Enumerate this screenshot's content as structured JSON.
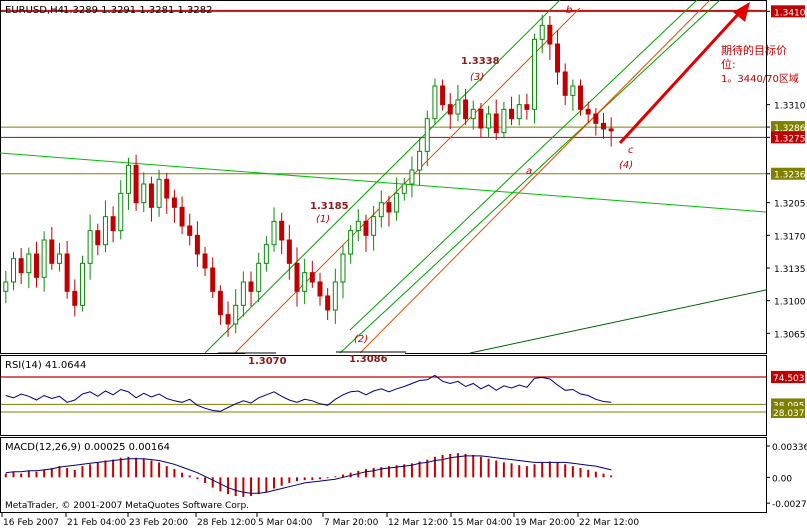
{
  "header": {
    "symbol": "EURUSD,H4",
    "ohlc": "1.3289 1.3291 1.3281 1.3282",
    "rsi_label": "RSI(14) 41.0644",
    "macd_label": "MACD(12,26,9) 0.00025 0.00164",
    "copyright": "MetaTrader, © 2001-2007 MetaQuotes Software Corp."
  },
  "colors": {
    "up_candle": "#0a8a0a",
    "down_candle": "#c00000",
    "rsi_line": "#000080",
    "macd_hist": "#c00000",
    "signal_line": "#000080",
    "channel_outer": "#00a000",
    "channel_inner": "#e05000",
    "target_arrow": "#e00000",
    "hline_red": "#c00000",
    "hline_olive": "#808000"
  },
  "annotations": {
    "wave_b": "b",
    "wave_a": "a",
    "wave_c": "c",
    "wave_4": "(4)",
    "wave_3_price": "1.3338",
    "wave_3": "(3)",
    "wave_1_price": "1.3185",
    "wave_1": "(1)",
    "wave_2": "(2)",
    "low_1": "1.3070",
    "low_2": "1.3086",
    "target_line1": "期待的目标价",
    "target_line2": "位:",
    "target_line3": "1。3440/70区域"
  },
  "chart_data": [
    {
      "type": "candlestick",
      "title": "EURUSD,H4",
      "ylim": [
        1.3045,
        1.342
      ],
      "y_ticks": [
        "1.3410",
        "1.3310",
        "1.3286",
        "1.3275",
        "1.3236",
        "1.3205",
        "1.3170",
        "1.3135",
        "1.3100",
        "1.3065"
      ],
      "highlighted_levels": [
        {
          "value": 1.341,
          "label": "1.3410",
          "color": "#c00000"
        },
        {
          "value": 1.3286,
          "label": "1.3286",
          "color": "#808000"
        },
        {
          "value": 1.3275,
          "label": "1.3275",
          "color": "#c00000"
        },
        {
          "value": 1.3236,
          "label": "1.3236",
          "color": "#808000"
        }
      ],
      "x_labels": [
        "16 Feb 2007",
        "21 Feb 04:00",
        "23 Feb 20:00",
        "28 Feb 12:00",
        "5 Mar 04:00",
        "7 Mar 20:00",
        "12 Mar 12:00",
        "15 Mar 04:00",
        "19 Mar 20:00",
        "22 Mar 12:00"
      ],
      "close_path": [
        1.312,
        1.3145,
        1.313,
        1.315,
        1.3125,
        1.3165,
        1.314,
        1.315,
        1.311,
        1.3095,
        1.314,
        1.3175,
        1.316,
        1.319,
        1.3175,
        1.3215,
        1.3245,
        1.3205,
        1.3225,
        1.32,
        1.323,
        1.321,
        1.32,
        1.318,
        1.317,
        1.315,
        1.3135,
        1.311,
        1.3085,
        1.3075,
        1.3095,
        1.312,
        1.311,
        1.314,
        1.316,
        1.3185,
        1.3165,
        1.314,
        1.311,
        1.313,
        1.312,
        1.3105,
        1.309,
        1.312,
        1.315,
        1.3175,
        1.3185,
        1.317,
        1.319,
        1.3205,
        1.3195,
        1.3215,
        1.3225,
        1.324,
        1.326,
        1.3295,
        1.333,
        1.331,
        1.33,
        1.3315,
        1.3295,
        1.3305,
        1.3285,
        1.33,
        1.328,
        1.3305,
        1.3295,
        1.331,
        1.3305,
        1.338,
        1.3395,
        1.3375,
        1.3345,
        1.332,
        1.333,
        1.3305,
        1.33,
        1.329,
        1.3284,
        1.3282
      ]
    },
    {
      "type": "line",
      "title": "RSI(14) 41.0644",
      "ylim": [
        0,
        100
      ],
      "y_ticks": [
        "74.7664",
        "74.5037",
        "38.0952",
        "28.0374"
      ],
      "levels": [
        74.7664,
        74.5037,
        38.0952,
        28.0374
      ],
      "values": [
        50,
        47,
        52,
        49,
        44,
        50,
        46,
        49,
        41,
        44,
        52,
        55,
        49,
        56,
        51,
        58,
        55,
        47,
        53,
        48,
        52,
        46,
        43,
        41,
        45,
        37,
        33,
        30,
        29,
        34,
        39,
        43,
        40,
        47,
        51,
        55,
        49,
        44,
        41,
        45,
        43,
        39,
        37,
        45,
        51,
        55,
        56,
        51,
        56,
        59,
        55,
        59,
        62,
        66,
        70,
        71,
        77,
        69,
        66,
        69,
        62,
        66,
        59,
        64,
        57,
        63,
        60,
        64,
        61,
        73,
        74,
        72,
        64,
        57,
        58,
        52,
        50,
        45,
        42,
        41
      ]
    },
    {
      "type": "bar",
      "title": "MACD(12,26,9) 0.00025 0.00164",
      "ylim": [
        -0.0035,
        0.004
      ],
      "y_ticks": [
        "0.00336",
        "0.00",
        "-0.00277"
      ],
      "histogram": [
        0.0004,
        0.0006,
        0.0004,
        0.0007,
        0.0006,
        0.0008,
        0.001,
        0.0012,
        0.001,
        0.0008,
        0.0012,
        0.0014,
        0.0016,
        0.0018,
        0.0019,
        0.0021,
        0.0022,
        0.0021,
        0.002,
        0.0018,
        0.0016,
        0.0012,
        0.0009,
        0.0005,
        0.0002,
        -0.0002,
        -0.0006,
        -0.0011,
        -0.0015,
        -0.0018,
        -0.002,
        -0.0021,
        -0.002,
        -0.0018,
        -0.0016,
        -0.0012,
        -0.0009,
        -0.0006,
        -0.0004,
        -0.0003,
        -0.0003,
        -0.0002,
        -0.0001,
        0.0001,
        0.0003,
        0.0005,
        0.0007,
        0.0009,
        0.001,
        0.0011,
        0.0012,
        0.0013,
        0.0014,
        0.0015,
        0.0017,
        0.0019,
        0.0022,
        0.0024,
        0.0025,
        0.0026,
        0.0025,
        0.0024,
        0.0022,
        0.002,
        0.0018,
        0.0016,
        0.0015,
        0.0013,
        0.0012,
        0.0014,
        0.0016,
        0.0017,
        0.0016,
        0.0014,
        0.0012,
        0.001,
        0.0008,
        0.0006,
        0.0004,
        0.0002
      ],
      "signal": [
        0.0005,
        0.0006,
        0.0006,
        0.0007,
        0.0007,
        0.0008,
        0.0009,
        0.0011,
        0.0012,
        0.0013,
        0.0014,
        0.0015,
        0.0016,
        0.0017,
        0.0018,
        0.0019,
        0.002,
        0.002,
        0.002,
        0.0019,
        0.0018,
        0.0016,
        0.0014,
        0.0011,
        0.0008,
        0.0005,
        0.0001,
        -0.0003,
        -0.0007,
        -0.0011,
        -0.0014,
        -0.0016,
        -0.0017,
        -0.0017,
        -0.0016,
        -0.0014,
        -0.0012,
        -0.001,
        -0.0008,
        -0.0006,
        -0.0005,
        -0.0004,
        -0.0003,
        -0.0002,
        0.0,
        0.0002,
        0.0004,
        0.0006,
        0.0007,
        0.0009,
        0.001,
        0.0011,
        0.0012,
        0.0013,
        0.0015,
        0.0016,
        0.0018,
        0.0019,
        0.0021,
        0.0022,
        0.0023,
        0.0023,
        0.0023,
        0.0022,
        0.0021,
        0.002,
        0.0019,
        0.0018,
        0.0017,
        0.0016,
        0.0016,
        0.0016,
        0.0016,
        0.0016,
        0.0015,
        0.0014,
        0.0013,
        0.0012,
        0.001,
        0.0008
      ]
    }
  ]
}
